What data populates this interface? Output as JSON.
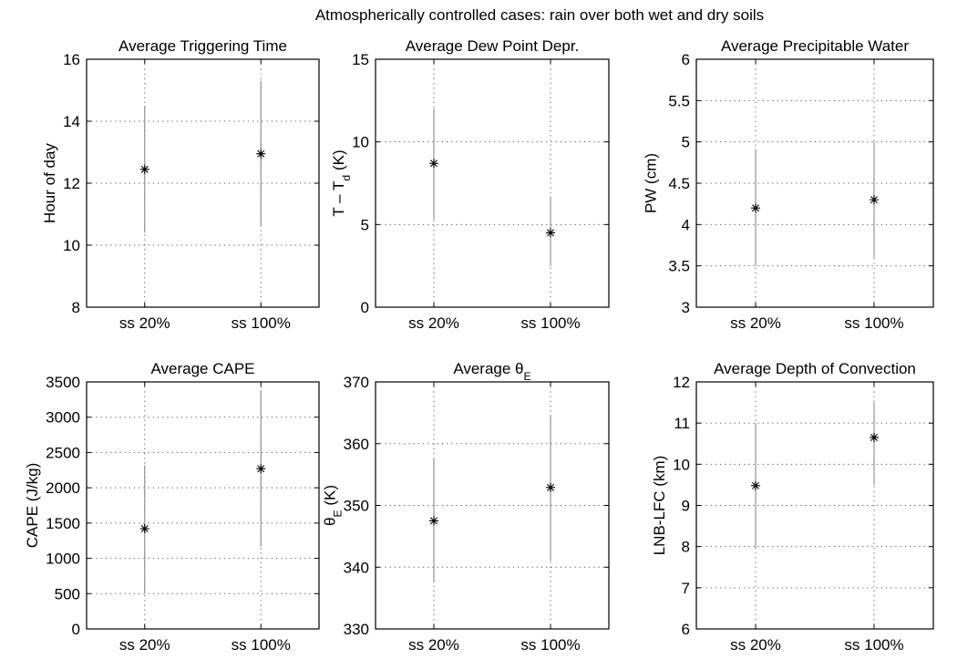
{
  "figure_title": "Atmospherically controlled cases: rain over both wet and dry soils",
  "colors": {
    "axis": "#000000",
    "grid": "#555555",
    "errorbar": "#9a9a9a",
    "marker": "#000000"
  },
  "chart_data": [
    {
      "type": "errorbar",
      "title": "Average Triggering Time",
      "title_math": null,
      "ylabel": "Hour of day",
      "ylabel_math": null,
      "categories": [
        "ss  20%",
        "ss 100%"
      ],
      "ylim": [
        8,
        16
      ],
      "yticks": [
        8,
        10,
        12,
        14,
        16
      ],
      "ytick_labels": [
        "8",
        "10",
        "12",
        "14",
        "16"
      ],
      "grid": true,
      "points": [
        {
          "category": "ss  20%",
          "mean": 12.45,
          "low": 10.4,
          "high": 14.5
        },
        {
          "category": "ss 100%",
          "mean": 12.95,
          "low": 10.6,
          "high": 15.3
        }
      ]
    },
    {
      "type": "errorbar",
      "title": "Average Dew Point Depr.",
      "title_math": null,
      "ylabel": "",
      "ylabel_math": {
        "base": "T – T",
        "sub": "d",
        "tail": " (K)"
      },
      "categories": [
        "ss  20%",
        "ss 100%"
      ],
      "ylim": [
        0,
        15
      ],
      "yticks": [
        0,
        5,
        10,
        15
      ],
      "ytick_labels": [
        "0",
        "5",
        "10",
        "15"
      ],
      "grid": true,
      "points": [
        {
          "category": "ss  20%",
          "mean": 8.7,
          "low": 5.3,
          "high": 12.0
        },
        {
          "category": "ss 100%",
          "mean": 4.5,
          "low": 2.5,
          "high": 6.6
        }
      ]
    },
    {
      "type": "errorbar",
      "title": "Average Precipitable Water",
      "title_math": null,
      "ylabel": "PW (cm)",
      "ylabel_math": null,
      "categories": [
        "ss  20%",
        "ss 100%"
      ],
      "ylim": [
        3,
        6
      ],
      "yticks": [
        3,
        3.5,
        4,
        4.5,
        5,
        5.5,
        6
      ],
      "ytick_labels": [
        "3",
        "3.5",
        "4",
        "4.5",
        "5",
        "5.5",
        "6"
      ],
      "grid": true,
      "points": [
        {
          "category": "ss  20%",
          "mean": 4.2,
          "low": 3.5,
          "high": 4.9
        },
        {
          "category": "ss 100%",
          "mean": 4.3,
          "low": 3.6,
          "high": 5.0
        }
      ]
    },
    {
      "type": "errorbar",
      "title": "Average CAPE",
      "title_math": null,
      "ylabel": "CAPE (J/kg)",
      "ylabel_math": null,
      "categories": [
        "ss  20%",
        "ss 100%"
      ],
      "ylim": [
        0,
        3500
      ],
      "yticks": [
        0,
        500,
        1000,
        1500,
        2000,
        2500,
        3000,
        3500
      ],
      "ytick_labels": [
        "0",
        "500",
        "1000",
        "1500",
        "2000",
        "2500",
        "3000",
        "3500"
      ],
      "grid": true,
      "points": [
        {
          "category": "ss  20%",
          "mean": 1420,
          "low": 500,
          "high": 2320
        },
        {
          "category": "ss 100%",
          "mean": 2270,
          "low": 1170,
          "high": 3380
        }
      ]
    },
    {
      "type": "errorbar",
      "title": "",
      "title_math": {
        "base": "Average θ",
        "sub": "E",
        "tail": ""
      },
      "ylabel": "",
      "ylabel_math": {
        "base": "θ",
        "sub": "E",
        "tail": " (K)"
      },
      "categories": [
        "ss  20%",
        "ss 100%"
      ],
      "ylim": [
        330,
        370
      ],
      "yticks": [
        330,
        340,
        350,
        360,
        370
      ],
      "ytick_labels": [
        "330",
        "340",
        "350",
        "360",
        "370"
      ],
      "grid": true,
      "points": [
        {
          "category": "ss  20%",
          "mean": 347.5,
          "low": 337.5,
          "high": 357.5
        },
        {
          "category": "ss 100%",
          "mean": 352.9,
          "low": 341.0,
          "high": 364.5
        }
      ]
    },
    {
      "type": "errorbar",
      "title": "Average Depth of Convection",
      "title_math": null,
      "ylabel": "LNB-LFC (km)",
      "ylabel_math": null,
      "categories": [
        "ss  20%",
        "ss 100%"
      ],
      "ylim": [
        6,
        12
      ],
      "yticks": [
        6,
        7,
        8,
        9,
        10,
        11,
        12
      ],
      "ytick_labels": [
        "6",
        "7",
        "8",
        "9",
        "10",
        "11",
        "12"
      ],
      "grid": true,
      "points": [
        {
          "category": "ss  20%",
          "mean": 9.48,
          "low": 7.95,
          "high": 11.0
        },
        {
          "category": "ss 100%",
          "mean": 10.65,
          "low": 9.5,
          "high": 11.5
        }
      ]
    }
  ]
}
